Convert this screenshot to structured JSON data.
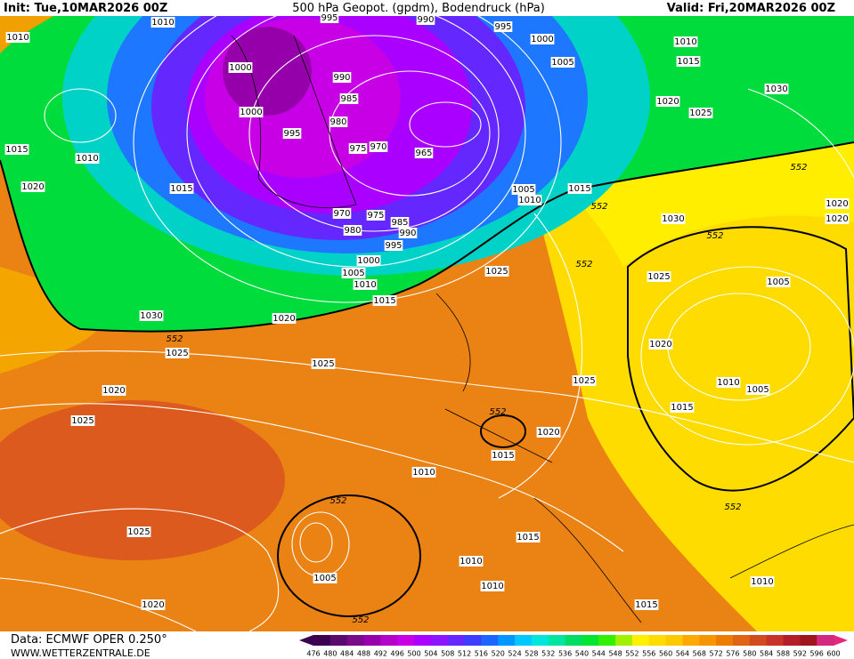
{
  "header": {
    "init": "Init: Tue,10MAR2026 00Z",
    "title": "500 hPa Geopot. (gpdm), Bodendruck (hPa)",
    "valid": "Valid: Fri,20MAR2026 00Z"
  },
  "footer": {
    "source": "Data: ECMWF OPER 0.250°",
    "site": "WWW.WETTERZENTRALE.DE"
  },
  "colorbar": {
    "ticks": [
      476,
      480,
      484,
      488,
      492,
      496,
      500,
      504,
      508,
      512,
      516,
      520,
      524,
      528,
      532,
      536,
      540,
      544,
      548,
      552,
      556,
      560,
      564,
      568,
      572,
      576,
      580,
      584,
      588,
      592,
      596,
      600
    ],
    "colors": [
      "#3c0050",
      "#5a0a6e",
      "#780a8c",
      "#9600aa",
      "#b400c8",
      "#c800e6",
      "#aa00ff",
      "#8c14ff",
      "#6428ff",
      "#3c3cff",
      "#1e64ff",
      "#0096ff",
      "#00c8ff",
      "#00e6dc",
      "#00e6a0",
      "#00dc64",
      "#00e632",
      "#32f000",
      "#a0f000",
      "#fff000",
      "#ffdc00",
      "#ffc800",
      "#ffaa00",
      "#f59600",
      "#eb7d00",
      "#e16414",
      "#d24b1e",
      "#c83228",
      "#b41e28",
      "#a0141e",
      "#d2287d"
    ]
  },
  "isobar_labels": [
    "1010",
    "1010",
    "995",
    "990",
    "995",
    "1000",
    "1010",
    "1005",
    "1015",
    "1000",
    "990",
    "1030",
    "985",
    "1020",
    "1025",
    "1000",
    "980",
    "995",
    "975",
    "970",
    "965",
    "1015",
    "1010",
    "1015",
    "1020",
    "1005",
    "1015",
    "1010",
    "1030",
    "970",
    "975",
    "985",
    "990",
    "980",
    "995",
    "1020",
    "1020",
    "1000",
    "1025",
    "1025",
    "1005",
    "1010",
    "1005",
    "1015",
    "1030",
    "1020",
    "1020",
    "1025",
    "1025",
    "1025",
    "1010",
    "1005",
    "1020",
    "1015",
    "1025",
    "1020",
    "1015",
    "1010",
    "1015",
    "1025",
    "1010",
    "1005",
    "1010",
    "1010",
    "1020",
    "1015"
  ],
  "contour_labels": [
    "552",
    "552",
    "552",
    "552",
    "552",
    "552",
    "552",
    "552",
    "552"
  ]
}
